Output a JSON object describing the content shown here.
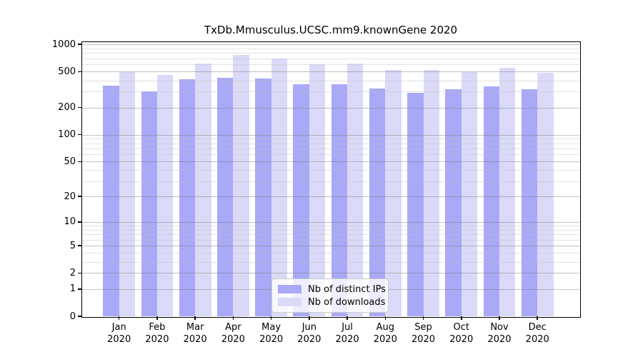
{
  "chart_data": {
    "type": "bar",
    "title": "TxDb.Mmusculus.UCSC.mm9.knownGene 2020",
    "categories": [
      "Jan",
      "Feb",
      "Mar",
      "Apr",
      "May",
      "Jun",
      "Jul",
      "Aug",
      "Sep",
      "Oct",
      "Nov",
      "Dec"
    ],
    "category_year": "2020",
    "series": [
      {
        "name": "Nb of distinct IPs",
        "color": "#a9a9f7",
        "values": [
          350,
          300,
          410,
          430,
          420,
          365,
          365,
          325,
          293,
          322,
          343,
          318
        ]
      },
      {
        "name": "Nb of downloads",
        "color": "#dadaf8",
        "values": [
          490,
          460,
          620,
          770,
          700,
          600,
          620,
          520,
          520,
          490,
          550,
          487
        ]
      }
    ],
    "y_axis": {
      "scale": "log1p",
      "ticks": [
        0,
        1,
        2,
        5,
        10,
        20,
        50,
        100,
        200,
        500,
        1000
      ],
      "minor_gridlines": [
        3,
        4,
        6,
        7,
        8,
        9,
        30,
        40,
        60,
        70,
        80,
        90,
        300,
        400,
        600,
        700,
        800,
        900
      ],
      "max": 1060
    },
    "xlabel": "",
    "ylabel": "",
    "grid": true,
    "legend_position": "lower center-left inside plot"
  }
}
